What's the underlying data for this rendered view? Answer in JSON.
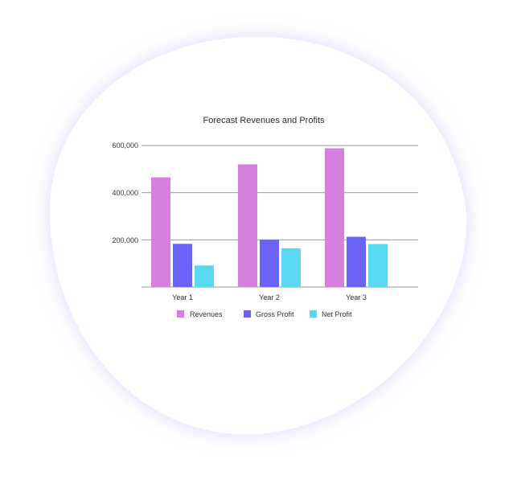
{
  "colors": {
    "background": "#ffffff",
    "blob": "#ffffff",
    "blob_glow": "#d7d2ff",
    "gridline": "#9a9a9a",
    "text": "#333333"
  },
  "chart_data": {
    "type": "bar",
    "title": "Forecast Revenues and Profits",
    "xlabel": "",
    "ylabel": "",
    "categories": [
      "Year 1",
      "Year 2",
      "Year 3"
    ],
    "series": [
      {
        "name": "Revenues",
        "color": "#d67fdc",
        "values": [
          465000,
          520000,
          588000
        ]
      },
      {
        "name": "Gross Profit",
        "color": "#6b63f7",
        "values": [
          183000,
          200000,
          213000
        ]
      },
      {
        "name": "Net Profit",
        "color": "#5ad8ef",
        "values": [
          91000,
          164000,
          182000
        ]
      }
    ],
    "ylim": [
      0,
      600000
    ],
    "yticks": [
      200000,
      400000,
      600000
    ],
    "ytick_labels": [
      "200,000",
      "400,000",
      "600,000"
    ],
    "grid": true,
    "legend_position": "bottom"
  }
}
